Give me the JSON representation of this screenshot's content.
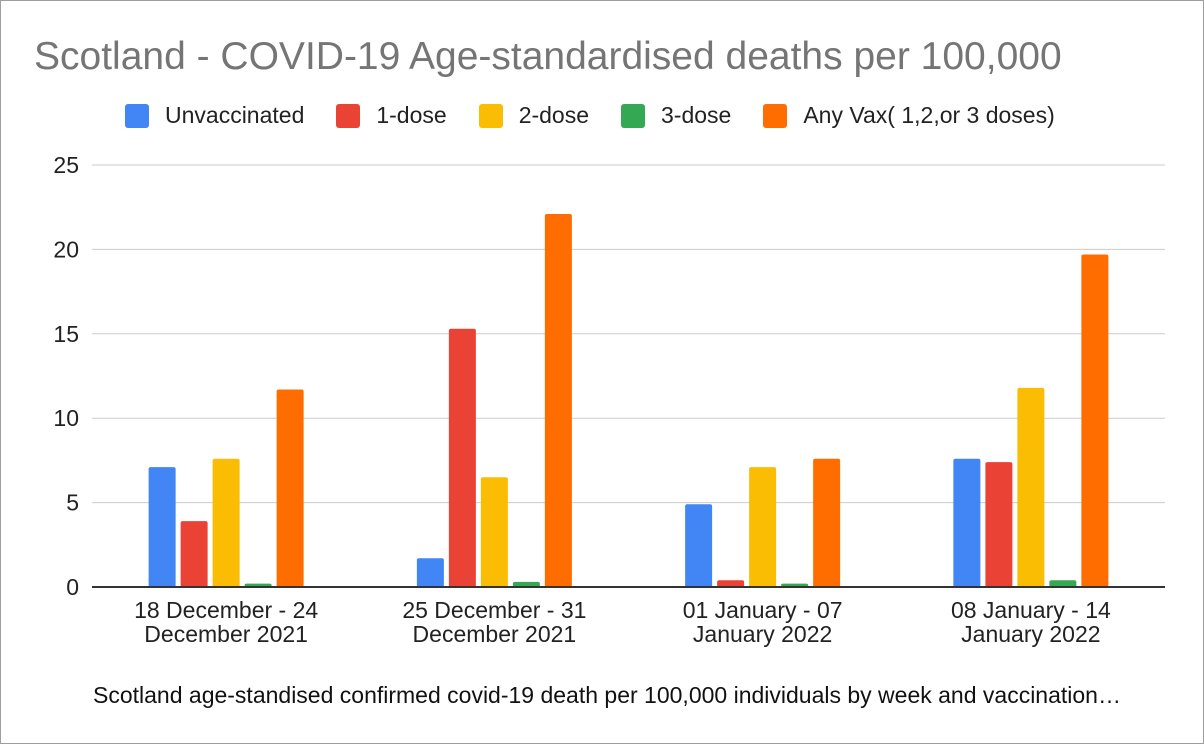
{
  "chart_data": {
    "type": "bar",
    "title": "Scotland - COVID-19 Age-standardised deaths per 100,000",
    "xlabel": "Scotland age-standised confirmed covid-19 death per 100,000 individuals by week and vaccination…",
    "ylabel": "",
    "ylim": [
      0,
      25
    ],
    "yticks": [
      "0",
      "5",
      "10",
      "15",
      "20",
      "25"
    ],
    "grid": true,
    "legend_position": "top",
    "categories": [
      [
        "18 December - 24",
        "December 2021"
      ],
      [
        "25 December - 31",
        "December 2021"
      ],
      [
        "01 January - 07",
        "January 2022"
      ],
      [
        "08 January - 14",
        "January 2022"
      ]
    ],
    "series": [
      {
        "name": "Unvaccinated",
        "color": "#4285f4",
        "values": [
          7.1,
          1.7,
          4.9,
          7.6
        ]
      },
      {
        "name": "1-dose",
        "color": "#ea4335",
        "values": [
          3.9,
          15.3,
          0.4,
          7.4
        ]
      },
      {
        "name": "2-dose",
        "color": "#fbbc04",
        "values": [
          7.6,
          6.5,
          7.1,
          11.8
        ]
      },
      {
        "name": "3-dose",
        "color": "#34a853",
        "values": [
          0.2,
          0.3,
          0.2,
          0.4
        ]
      },
      {
        "name": "Any Vax( 1,2,or 3 doses)",
        "color": "#ff6d01",
        "values": [
          11.7,
          22.1,
          7.6,
          19.7
        ]
      }
    ]
  }
}
